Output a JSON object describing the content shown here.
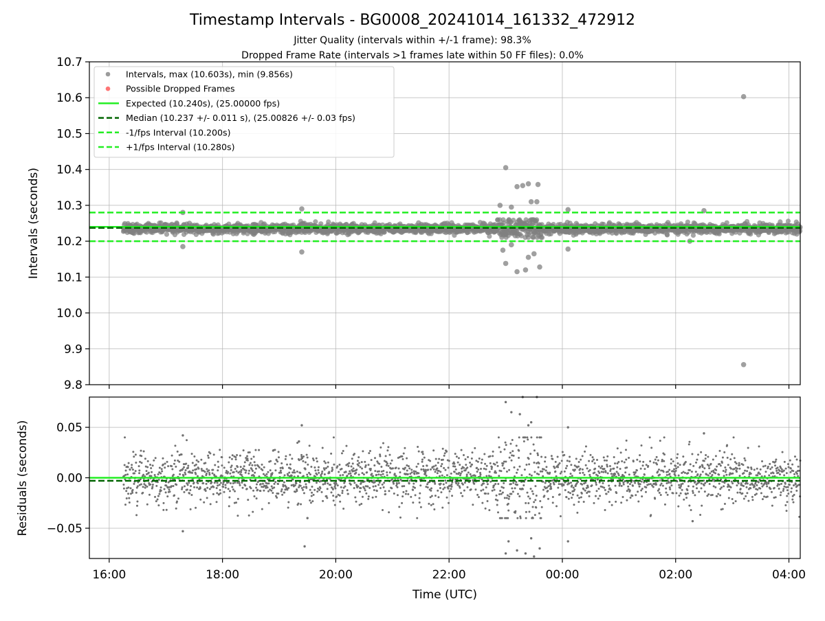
{
  "chart_data": {
    "type": "scatter",
    "title": "Timestamp Intervals - BG0008_20241014_161332_472912",
    "subtitle_lines": [
      "Jitter Quality (intervals within +/-1 frame): 98.3%",
      "Dropped Frame Rate (intervals >1 frames late within 50 FF files): 0.0%"
    ],
    "xlabel": "Time (UTC)",
    "x_unit": "hours since 16:00 UTC",
    "xlim": [
      -0.35,
      12.2
    ],
    "x_ticks": [
      0,
      2,
      4,
      6,
      8,
      10,
      12
    ],
    "x_tick_labels": [
      "16:00",
      "18:00",
      "20:00",
      "22:00",
      "00:00",
      "02:00",
      "04:00"
    ],
    "grid": true,
    "colors": {
      "points": "#808080",
      "residual_points": "#707070",
      "dropped": "#ff6666",
      "expected": "#22ee22",
      "median": "#006400",
      "interval_bounds": "#22ee22"
    },
    "top": {
      "ylabel": "Intervals (seconds)",
      "ylim": [
        9.8,
        10.7
      ],
      "y_ticks": [
        9.8,
        9.9,
        10.0,
        10.1,
        10.2,
        10.3,
        10.4,
        10.5,
        10.6,
        10.7
      ],
      "y_tick_labels": [
        "9.8",
        "9.9",
        "10.0",
        "10.1",
        "10.2",
        "10.3",
        "10.4",
        "10.5",
        "10.6",
        "10.7"
      ],
      "legend_position": "top-left",
      "legend": [
        {
          "label": "Intervals, max (10.603s), min (9.856s)",
          "kind": "marker",
          "color": "#909090"
        },
        {
          "label": "Possible Dropped Frames",
          "kind": "marker",
          "color": "#ff6666"
        },
        {
          "label": "Expected (10.240s), (25.00000 fps)",
          "kind": "solid",
          "color": "#22ee22"
        },
        {
          "label": "Median (10.237 +/- 0.011 s), (25.00826 +/- 0.03 fps)",
          "kind": "dashed",
          "color": "#006400"
        },
        {
          "label": "-1/fps Interval (10.200s)",
          "kind": "dashed",
          "color": "#22ee22"
        },
        {
          "label": "+1/fps Interval (10.280s)",
          "kind": "dashed",
          "color": "#22ee22"
        }
      ],
      "reference_lines": {
        "expected": 10.24,
        "median": 10.237,
        "minus_interval": 10.2,
        "plus_interval": 10.28
      },
      "series": {
        "name": "Intervals, max (10.603s), min (9.856s)",
        "x_start": 0.25,
        "x_end": 12.2,
        "baseline": 10.235,
        "typical_spread": 0.012,
        "outliers": [
          {
            "x": 11.2,
            "y": 10.603
          },
          {
            "x": 11.2,
            "y": 9.856
          },
          {
            "x": 7.0,
            "y": 10.405
          },
          {
            "x": 7.4,
            "y": 10.36
          },
          {
            "x": 7.57,
            "y": 10.358
          },
          {
            "x": 7.2,
            "y": 10.352
          },
          {
            "x": 7.3,
            "y": 10.355
          },
          {
            "x": 7.45,
            "y": 10.31
          },
          {
            "x": 7.55,
            "y": 10.31
          },
          {
            "x": 6.9,
            "y": 10.3
          },
          {
            "x": 7.1,
            "y": 10.295
          },
          {
            "x": 7.0,
            "y": 10.138
          },
          {
            "x": 7.2,
            "y": 10.115
          },
          {
            "x": 7.35,
            "y": 10.12
          },
          {
            "x": 7.6,
            "y": 10.128
          },
          {
            "x": 6.95,
            "y": 10.175
          },
          {
            "x": 7.4,
            "y": 10.155
          },
          {
            "x": 7.5,
            "y": 10.165
          },
          {
            "x": 7.1,
            "y": 10.19
          },
          {
            "x": 3.4,
            "y": 10.29
          },
          {
            "x": 3.4,
            "y": 10.17
          },
          {
            "x": 1.3,
            "y": 10.28
          },
          {
            "x": 1.3,
            "y": 10.185
          },
          {
            "x": 8.1,
            "y": 10.288
          },
          {
            "x": 8.1,
            "y": 10.178
          },
          {
            "x": 10.5,
            "y": 10.285
          },
          {
            "x": 10.25,
            "y": 10.2
          }
        ]
      }
    },
    "bottom": {
      "ylabel": "Residuals (seconds)",
      "ylim": [
        -0.08,
        0.08
      ],
      "y_ticks": [
        -0.05,
        0.0,
        0.05
      ],
      "y_tick_labels": [
        "−0.05",
        "0.00",
        "0.05"
      ],
      "reference_lines": {
        "expected": 0.0,
        "median": -0.003
      },
      "series": {
        "name": "Residuals",
        "typical_spread": 0.013,
        "outliers": [
          {
            "x": 7.0,
            "y": 0.075
          },
          {
            "x": 7.3,
            "y": 0.08
          },
          {
            "x": 7.55,
            "y": 0.08
          },
          {
            "x": 7.1,
            "y": 0.065
          },
          {
            "x": 7.25,
            "y": 0.063
          },
          {
            "x": 7.4,
            "y": 0.052
          },
          {
            "x": 7.45,
            "y": 0.055
          },
          {
            "x": 7.0,
            "y": -0.075
          },
          {
            "x": 7.2,
            "y": -0.072
          },
          {
            "x": 7.35,
            "y": -0.075
          },
          {
            "x": 7.6,
            "y": -0.07
          },
          {
            "x": 7.5,
            "y": -0.078
          },
          {
            "x": 7.05,
            "y": -0.063
          },
          {
            "x": 7.45,
            "y": -0.06
          },
          {
            "x": 1.3,
            "y": 0.042
          },
          {
            "x": 1.3,
            "y": -0.053
          },
          {
            "x": 3.4,
            "y": 0.052
          },
          {
            "x": 3.35,
            "y": 0.036
          },
          {
            "x": 3.45,
            "y": -0.068
          },
          {
            "x": 3.5,
            "y": -0.04
          },
          {
            "x": 8.1,
            "y": 0.05
          },
          {
            "x": 8.1,
            "y": -0.063
          },
          {
            "x": 10.5,
            "y": 0.044
          },
          {
            "x": 10.3,
            "y": -0.043
          }
        ]
      }
    }
  }
}
